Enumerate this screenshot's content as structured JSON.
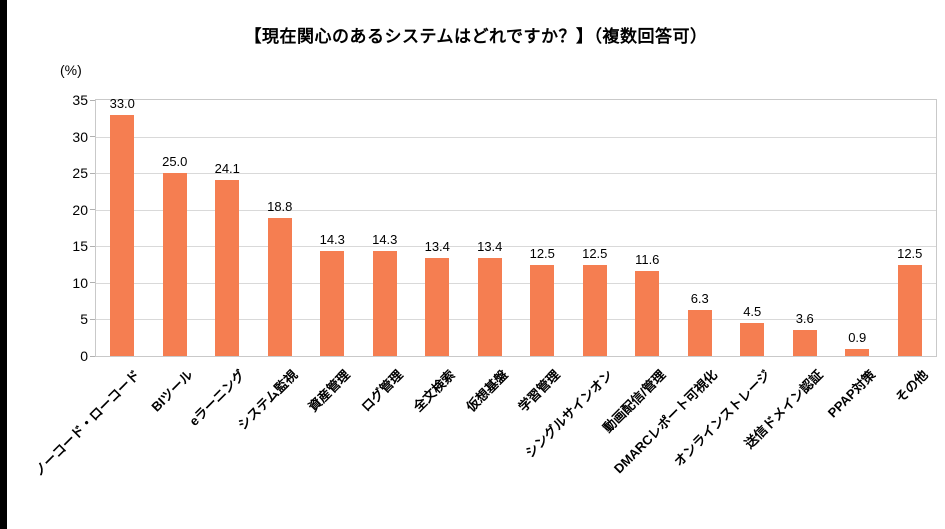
{
  "chart_data": {
    "type": "bar",
    "title": "【現在関心のあるシステムはどれですか？】（複数回答可）",
    "unit_label": "(%)",
    "categories": [
      "ノーコード・ローコード",
      "BIツール",
      "eラーニング",
      "システム監視",
      "資産管理",
      "ログ管理",
      "全文検索",
      "仮想基盤",
      "学習管理",
      "シングルサインオン",
      "動画配信/管理",
      "DMARCレポート可視化",
      "オンラインストレージ",
      "送信ドメイン認証",
      "PPAP対策",
      "その他"
    ],
    "values": [
      33.0,
      25.0,
      24.1,
      18.8,
      14.3,
      14.3,
      13.4,
      13.4,
      12.5,
      12.5,
      11.6,
      6.3,
      4.5,
      3.6,
      0.9,
      12.5
    ],
    "value_labels": [
      "33.0",
      "25.0",
      "24.1",
      "18.8",
      "14.3",
      "14.3",
      "13.4",
      "13.4",
      "12.5",
      "12.5",
      "11.6",
      "6.3",
      "4.5",
      "3.6",
      "0.9",
      "12.5"
    ],
    "ylim": [
      0,
      35
    ],
    "yticks": [
      0,
      5,
      10,
      15,
      20,
      25,
      30,
      35
    ],
    "grid": "horizontal",
    "legend": "none",
    "bar_color": "#F57E51",
    "gridline_color": "#d9d9d9",
    "axis_text_color": "#000000"
  }
}
